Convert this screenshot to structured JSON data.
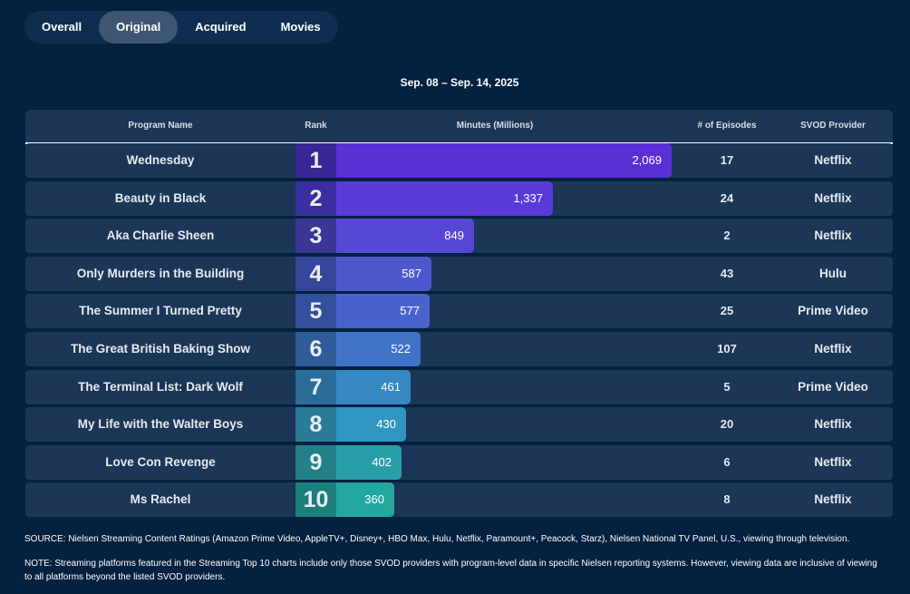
{
  "tabs": [
    "Overall",
    "Original",
    "Acquired",
    "Movies"
  ],
  "active_tab": "Original",
  "date_range": "Sep. 08 – Sep. 14, 2025",
  "colors": {
    "background": "#04213f",
    "row": "#1b3656",
    "rank_colors": [
      "#3a2694",
      "#3a2ea0",
      "#3b3596",
      "#35479a",
      "#33509c",
      "#2f5d9b",
      "#2b6d98",
      "#2a7b97",
      "#238089",
      "#1b7f7c"
    ],
    "bar_colors": [
      "#5a2fd6",
      "#5b3bd8",
      "#5648d2",
      "#4d58cf",
      "#4864cc",
      "#3f73c6",
      "#3689c3",
      "#3196c1",
      "#2a9ea8",
      "#24a89e"
    ]
  },
  "chart_data": {
    "type": "table",
    "title": "Sep. 08 – Sep. 14, 2025",
    "columns": [
      "Program Name",
      "Rank",
      "Minutes (Millions)",
      "# of Episodes",
      "SVOD Provider"
    ],
    "max_value": 2069,
    "rows": [
      {
        "program": "Wednesday",
        "rank": "1",
        "minutes": 2069,
        "minutes_label": "2,069",
        "episodes": "17",
        "provider": "Netflix"
      },
      {
        "program": "Beauty in Black",
        "rank": "2",
        "minutes": 1337,
        "minutes_label": "1,337",
        "episodes": "24",
        "provider": "Netflix"
      },
      {
        "program": "Aka Charlie Sheen",
        "rank": "3",
        "minutes": 849,
        "minutes_label": "849",
        "episodes": "2",
        "provider": "Netflix"
      },
      {
        "program": "Only Murders in the Building",
        "rank": "4",
        "minutes": 587,
        "minutes_label": "587",
        "episodes": "43",
        "provider": "Hulu"
      },
      {
        "program": "The Summer I Turned Pretty",
        "rank": "5",
        "minutes": 577,
        "minutes_label": "577",
        "episodes": "25",
        "provider": "Prime Video"
      },
      {
        "program": "The Great British Baking Show",
        "rank": "6",
        "minutes": 522,
        "minutes_label": "522",
        "episodes": "107",
        "provider": "Netflix"
      },
      {
        "program": "The Terminal List: Dark Wolf",
        "rank": "7",
        "minutes": 461,
        "minutes_label": "461",
        "episodes": "5",
        "provider": "Prime Video"
      },
      {
        "program": "My Life with the Walter Boys",
        "rank": "8",
        "minutes": 430,
        "minutes_label": "430",
        "episodes": "20",
        "provider": "Netflix"
      },
      {
        "program": "Love Con Revenge",
        "rank": "9",
        "minutes": 402,
        "minutes_label": "402",
        "episodes": "6",
        "provider": "Netflix"
      },
      {
        "program": "Ms Rachel",
        "rank": "10",
        "minutes": 360,
        "minutes_label": "360",
        "episodes": "8",
        "provider": "Netflix"
      }
    ]
  },
  "footnotes": {
    "source": "SOURCE: Nielsen Streaming Content Ratings (Amazon Prime Video, AppleTV+, Disney+, HBO Max, Hulu, Netflix, Paramount+, Peacock, Starz), Nielsen National TV Panel, U.S., viewing through television.",
    "note": "NOTE: Streaming platforms featured in the Streaming Top 10 charts include only those SVOD providers with program-level data in specific Nielsen reporting systems. However, viewing data are inclusive of viewing to all platforms beyond the listed SVOD providers."
  }
}
